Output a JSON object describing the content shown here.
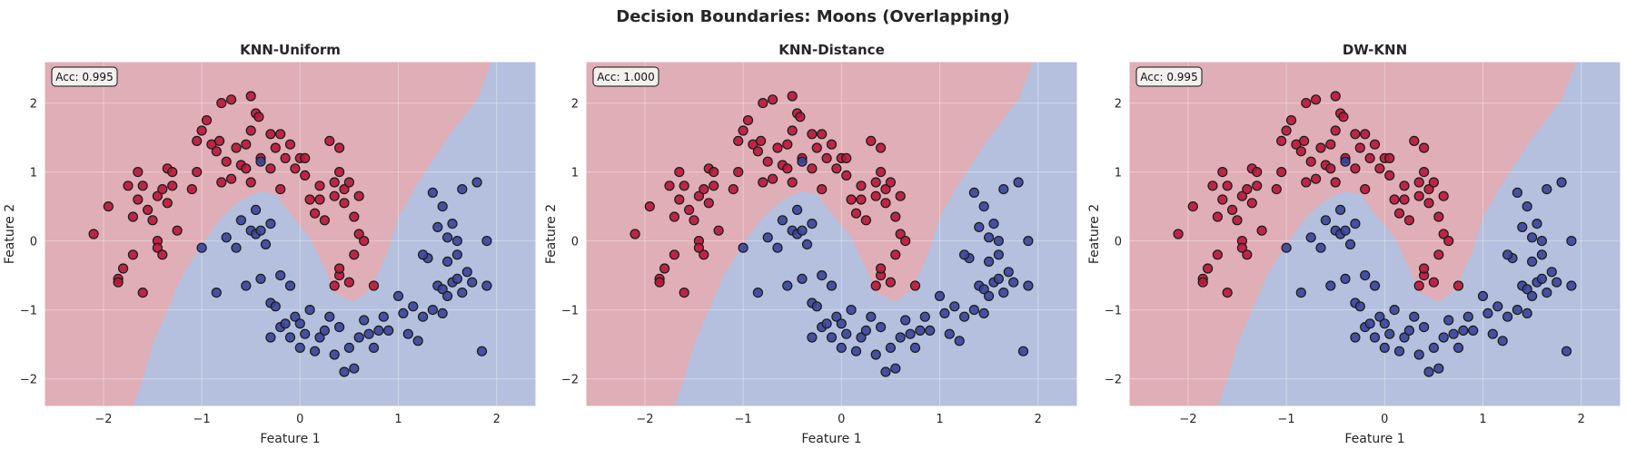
{
  "figure": {
    "title": "Decision Boundaries: Moons (Overlapping)"
  },
  "colors": {
    "class_0_region": "#e0aeb6",
    "class_1_region": "#b4c0dd",
    "class_0_point": "#b8173a",
    "class_1_point": "#3a4499",
    "point_edge": "#1a1a1a"
  },
  "chart_data": [
    {
      "type": "scatter",
      "title": "KNN-Uniform",
      "annotation": "Acc: 0.995",
      "xlabel": "Feature 1",
      "ylabel": "Feature 2",
      "xlim": [
        -2.6,
        2.4
      ],
      "ylim": [
        -2.4,
        2.6
      ],
      "xticks": [
        -2,
        -1,
        0,
        1,
        2
      ],
      "yticks": [
        -2,
        -1,
        0,
        1,
        2
      ],
      "grid": true
    },
    {
      "type": "scatter",
      "title": "KNN-Distance",
      "annotation": "Acc: 1.000",
      "xlabel": "Feature 1",
      "ylabel": "Feature 2",
      "xlim": [
        -2.6,
        2.4
      ],
      "ylim": [
        -2.4,
        2.6
      ],
      "xticks": [
        -2,
        -1,
        0,
        1,
        2
      ],
      "yticks": [
        -2,
        -1,
        0,
        1,
        2
      ],
      "grid": true
    },
    {
      "type": "scatter",
      "title": "DW-KNN",
      "annotation": "Acc: 0.995",
      "xlabel": "Feature 1",
      "ylabel": "Feature 2",
      "xlim": [
        -2.6,
        2.4
      ],
      "ylim": [
        -2.4,
        2.6
      ],
      "xticks": [
        -2,
        -1,
        0,
        1,
        2
      ],
      "yticks": [
        -2,
        -1,
        0,
        1,
        2
      ],
      "grid": true
    }
  ],
  "boundary": {
    "description_points": [
      [
        -1.7,
        -2.4
      ],
      [
        -1.6,
        -2.0
      ],
      [
        -1.5,
        -1.5
      ],
      [
        -1.35,
        -1.0
      ],
      [
        -1.2,
        -0.5
      ],
      [
        -1.0,
        -0.05
      ],
      [
        -0.8,
        0.35
      ],
      [
        -0.6,
        0.6
      ],
      [
        -0.4,
        0.72
      ],
      [
        -0.25,
        0.68
      ],
      [
        -0.1,
        0.4
      ],
      [
        0.1,
        0.05
      ],
      [
        0.25,
        -0.4
      ],
      [
        0.35,
        -0.75
      ],
      [
        0.55,
        -0.88
      ],
      [
        0.72,
        -0.7
      ],
      [
        0.88,
        -0.2
      ],
      [
        1.0,
        0.35
      ],
      [
        1.18,
        0.8
      ],
      [
        1.5,
        1.5
      ],
      [
        1.8,
        2.05
      ],
      [
        1.95,
        2.6
      ]
    ]
  },
  "points": {
    "class_0": [
      [
        -2.1,
        0.1
      ],
      [
        -1.95,
        0.5
      ],
      [
        -1.85,
        -0.55
      ],
      [
        -1.85,
        -0.6
      ],
      [
        -1.8,
        -0.4
      ],
      [
        -1.75,
        0.8
      ],
      [
        -1.7,
        0.35
      ],
      [
        -1.7,
        -0.2
      ],
      [
        -1.65,
        0.6
      ],
      [
        -1.65,
        1.0
      ],
      [
        -1.6,
        0.8
      ],
      [
        -1.6,
        -0.75
      ],
      [
        -1.55,
        0.45
      ],
      [
        -1.5,
        0.3
      ],
      [
        -1.45,
        0.0
      ],
      [
        -1.45,
        -0.1
      ],
      [
        -1.45,
        0.65
      ],
      [
        -1.4,
        0.75
      ],
      [
        -1.4,
        -0.2
      ],
      [
        -1.35,
        0.55
      ],
      [
        -1.35,
        1.05
      ],
      [
        -1.3,
        0.8
      ],
      [
        -1.3,
        1.0
      ],
      [
        -1.25,
        0.15
      ],
      [
        -1.1,
        0.75
      ],
      [
        -1.05,
        1.45
      ],
      [
        -1.05,
        1.0
      ],
      [
        -1.0,
        1.6
      ],
      [
        -0.95,
        1.75
      ],
      [
        -0.9,
        1.4
      ],
      [
        -0.85,
        1.3
      ],
      [
        -0.82,
        1.45
      ],
      [
        -0.8,
        0.85
      ],
      [
        -0.8,
        2.0
      ],
      [
        -0.75,
        1.15
      ],
      [
        -0.7,
        0.9
      ],
      [
        -0.7,
        2.05
      ],
      [
        -0.65,
        1.35
      ],
      [
        -0.6,
        1.1
      ],
      [
        -0.55,
        1.4
      ],
      [
        -0.5,
        1.6
      ],
      [
        -0.5,
        0.85
      ],
      [
        -0.45,
        1.85
      ],
      [
        -0.42,
        1.8
      ],
      [
        -0.4,
        1.2
      ],
      [
        -0.3,
        1.05
      ],
      [
        -0.25,
        1.35
      ],
      [
        -0.2,
        0.75
      ],
      [
        -0.2,
        1.55
      ],
      [
        -0.1,
        1.4
      ],
      [
        -0.05,
        1.05
      ],
      [
        0.0,
        1.2
      ],
      [
        0.05,
        1.2
      ],
      [
        0.05,
        0.95
      ],
      [
        0.1,
        0.6
      ],
      [
        0.15,
        0.4
      ],
      [
        0.2,
        0.8
      ],
      [
        0.25,
        0.3
      ],
      [
        0.3,
        1.45
      ],
      [
        0.35,
        0.65
      ],
      [
        0.35,
        0.85
      ],
      [
        0.4,
        1.0
      ],
      [
        0.4,
        1.35
      ],
      [
        0.45,
        0.55
      ],
      [
        0.45,
        0.75
      ],
      [
        0.5,
        0.85
      ],
      [
        0.55,
        0.35
      ],
      [
        0.6,
        0.65
      ],
      [
        0.6,
        0.1
      ],
      [
        0.65,
        0.0
      ],
      [
        0.55,
        -0.2
      ],
      [
        0.4,
        -0.5
      ],
      [
        0.35,
        -0.65
      ],
      [
        0.5,
        -0.6
      ],
      [
        0.75,
        -0.65
      ],
      [
        0.2,
        0.6
      ],
      [
        -0.55,
        1.05
      ],
      [
        -0.5,
        2.1
      ],
      [
        -0.3,
        1.55
      ],
      [
        -0.15,
        1.2
      ],
      [
        0.4,
        -0.4
      ]
    ],
    "class_1": [
      [
        -0.4,
        1.15
      ],
      [
        -1.0,
        -0.1
      ],
      [
        -0.85,
        -0.75
      ],
      [
        -0.75,
        0.05
      ],
      [
        -0.65,
        -0.1
      ],
      [
        -0.6,
        0.3
      ],
      [
        -0.55,
        -0.65
      ],
      [
        -0.5,
        0.15
      ],
      [
        -0.45,
        0.45
      ],
      [
        -0.45,
        0.1
      ],
      [
        -0.4,
        0.15
      ],
      [
        -0.4,
        -0.55
      ],
      [
        -0.35,
        -0.05
      ],
      [
        -0.3,
        0.25
      ],
      [
        -0.3,
        -0.9
      ],
      [
        -0.3,
        -1.4
      ],
      [
        -0.25,
        -0.95
      ],
      [
        -0.2,
        -0.5
      ],
      [
        -0.2,
        -1.25
      ],
      [
        -0.15,
        -1.2
      ],
      [
        -0.1,
        -0.65
      ],
      [
        -0.1,
        -1.4
      ],
      [
        -0.05,
        -1.1
      ],
      [
        0.0,
        -1.2
      ],
      [
        0.0,
        -1.55
      ],
      [
        0.05,
        -1.35
      ],
      [
        0.1,
        -1.0
      ],
      [
        0.15,
        -1.6
      ],
      [
        0.2,
        -1.4
      ],
      [
        0.25,
        -1.3
      ],
      [
        0.3,
        -1.1
      ],
      [
        0.35,
        -1.65
      ],
      [
        0.4,
        -1.25
      ],
      [
        0.45,
        -1.9
      ],
      [
        0.5,
        -1.55
      ],
      [
        0.55,
        -1.85
      ],
      [
        0.6,
        -1.4
      ],
      [
        0.65,
        -1.15
      ],
      [
        0.7,
        -1.35
      ],
      [
        0.75,
        -1.55
      ],
      [
        0.8,
        -1.3
      ],
      [
        0.85,
        -1.1
      ],
      [
        0.9,
        -1.3
      ],
      [
        1.0,
        -0.8
      ],
      [
        1.05,
        -1.05
      ],
      [
        1.1,
        -1.35
      ],
      [
        1.15,
        -0.95
      ],
      [
        1.2,
        -1.45
      ],
      [
        1.25,
        -1.1
      ],
      [
        1.3,
        -0.25
      ],
      [
        1.35,
        -1.0
      ],
      [
        1.4,
        -0.65
      ],
      [
        1.45,
        -1.05
      ],
      [
        1.45,
        -0.7
      ],
      [
        1.5,
        -0.8
      ],
      [
        1.55,
        -0.6
      ],
      [
        1.6,
        -0.55
      ],
      [
        1.65,
        -0.75
      ],
      [
        1.7,
        -0.45
      ],
      [
        1.75,
        -0.6
      ],
      [
        1.6,
        0.0
      ],
      [
        1.55,
        0.25
      ],
      [
        1.6,
        -0.2
      ],
      [
        1.5,
        -0.3
      ],
      [
        1.35,
        0.7
      ],
      [
        1.45,
        0.5
      ],
      [
        1.5,
        0.05
      ],
      [
        1.25,
        -0.2
      ],
      [
        1.65,
        0.75
      ],
      [
        1.8,
        0.85
      ],
      [
        1.85,
        -1.6
      ],
      [
        1.9,
        0.0
      ],
      [
        1.9,
        -0.65
      ],
      [
        1.4,
        0.2
      ]
    ]
  }
}
